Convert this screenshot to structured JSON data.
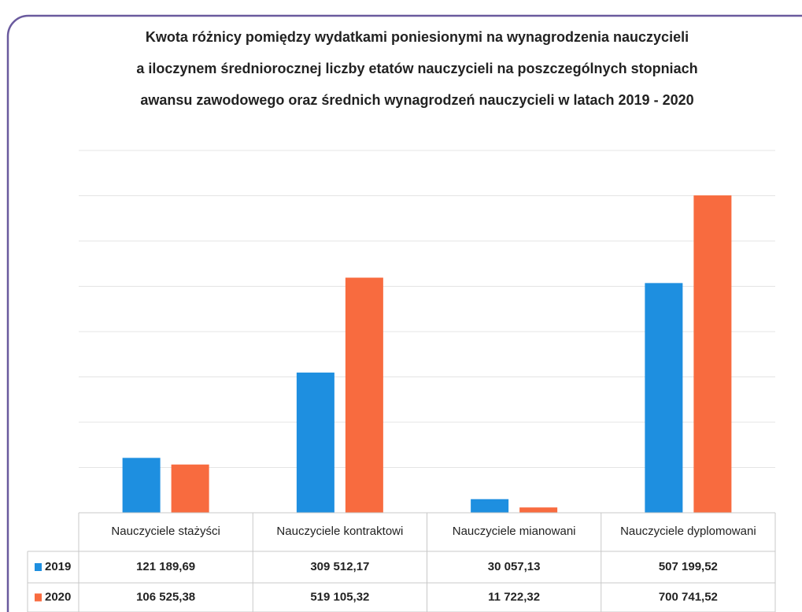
{
  "chart_data": {
    "type": "bar",
    "title": [
      "Kwota różnicy pomiędzy wydatkami poniesionymi na wynagrodzenia nauczycieli",
      "a iloczynem średniorocznej liczby etatów nauczycieli na poszczególnych stopniach",
      "awansu zawodowego oraz średnich wynagrodzeń nauczycieli w latach 2019 - 2020"
    ],
    "categories": [
      "Nauczyciele stażyści",
      "Nauczyciele kontraktowi",
      "Nauczyciele mianowani",
      "Nauczyciele dyplomowani"
    ],
    "series": [
      {
        "name": "2019",
        "color": "#1e8fe0",
        "values": [
          121189.69,
          309512.17,
          30057.13,
          507199.52
        ],
        "value_labels": [
          "121 189,69",
          "309 512,17",
          "30 057,13",
          "507 199,52"
        ]
      },
      {
        "name": "2020",
        "color": "#f86b3f",
        "values": [
          106525.38,
          519105.32,
          11722.32,
          700741.52
        ],
        "value_labels": [
          "106 525,38",
          "519 105,32",
          "11 722,32",
          "700 741,52"
        ]
      }
    ],
    "ylim": [
      0,
      800000
    ],
    "yticks": [
      0,
      100000,
      200000,
      300000,
      400000,
      500000,
      600000,
      700000,
      800000
    ],
    "grid": true
  }
}
